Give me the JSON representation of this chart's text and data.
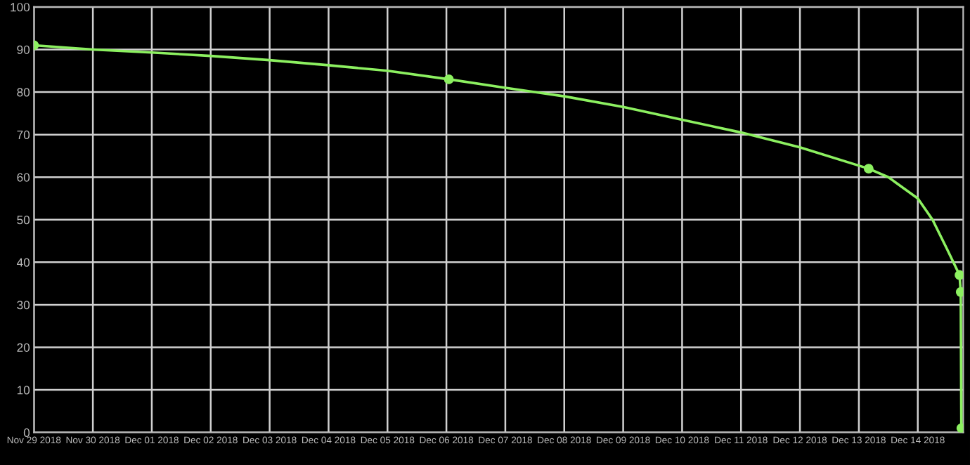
{
  "chart_data": {
    "type": "line",
    "series": [
      {
        "color": "#8cf060",
        "x": [
          "2018-11-29T00:00",
          "2018-11-30",
          "2018-12-01",
          "2018-12-02",
          "2018-12-03",
          "2018-12-04",
          "2018-12-05",
          "2018-12-06T01:00",
          "2018-12-07",
          "2018-12-08",
          "2018-12-09",
          "2018-12-10",
          "2018-12-11",
          "2018-12-12",
          "2018-12-13T04:00",
          "2018-12-13T12:00",
          "2018-12-14T00:00",
          "2018-12-14T06:00",
          "2018-12-14T12:00",
          "2018-12-14T17:00",
          "2018-12-14T17:30",
          "2018-12-14T17:45"
        ],
        "values": [
          91,
          90,
          89.3,
          88.5,
          87.5,
          86.3,
          85,
          83,
          81,
          79,
          76.5,
          73.5,
          70.5,
          67,
          62,
          60,
          55,
          50,
          43,
          37,
          33,
          1
        ]
      },
      {
        "type": "scatter",
        "marker": "circle",
        "color": "#8cf060",
        "x": [
          "2018-11-29T00:00",
          "2018-12-06T01:00",
          "2018-12-13T04:00",
          "2018-12-14T17:00",
          "2018-12-14T17:30",
          "2018-12-14T17:45"
        ],
        "values": [
          91,
          83,
          62,
          37,
          33,
          1
        ]
      }
    ],
    "xlim": [
      "2018-11-29T00:00",
      "2018-12-14T18:30"
    ],
    "xticks": [
      {
        "value": "2018-11-29",
        "label": "Nov 29 2018"
      },
      {
        "value": "2018-11-30",
        "label": "Nov 30 2018"
      },
      {
        "value": "2018-12-01",
        "label": "Dec 01 2018"
      },
      {
        "value": "2018-12-02",
        "label": "Dec 02 2018"
      },
      {
        "value": "2018-12-03",
        "label": "Dec 03 2018"
      },
      {
        "value": "2018-12-04",
        "label": "Dec 04 2018"
      },
      {
        "value": "2018-12-05",
        "label": "Dec 05 2018"
      },
      {
        "value": "2018-12-06",
        "label": "Dec 06 2018"
      },
      {
        "value": "2018-12-07",
        "label": "Dec 07 2018"
      },
      {
        "value": "2018-12-08",
        "label": "Dec 08 2018"
      },
      {
        "value": "2018-12-09",
        "label": "Dec 09 2018"
      },
      {
        "value": "2018-12-10",
        "label": "Dec 10 2018"
      },
      {
        "value": "2018-12-11",
        "label": "Dec 11 2018"
      },
      {
        "value": "2018-12-12",
        "label": "Dec 12 2018"
      },
      {
        "value": "2018-12-13",
        "label": "Dec 13 2018"
      },
      {
        "value": "2018-12-14",
        "label": "Dec 14 2018"
      }
    ],
    "ylim": [
      0,
      100
    ],
    "yticks": [
      0,
      10,
      20,
      30,
      40,
      50,
      60,
      70,
      80,
      90,
      100
    ],
    "grid": true,
    "line_style": "solid",
    "legend": false
  }
}
